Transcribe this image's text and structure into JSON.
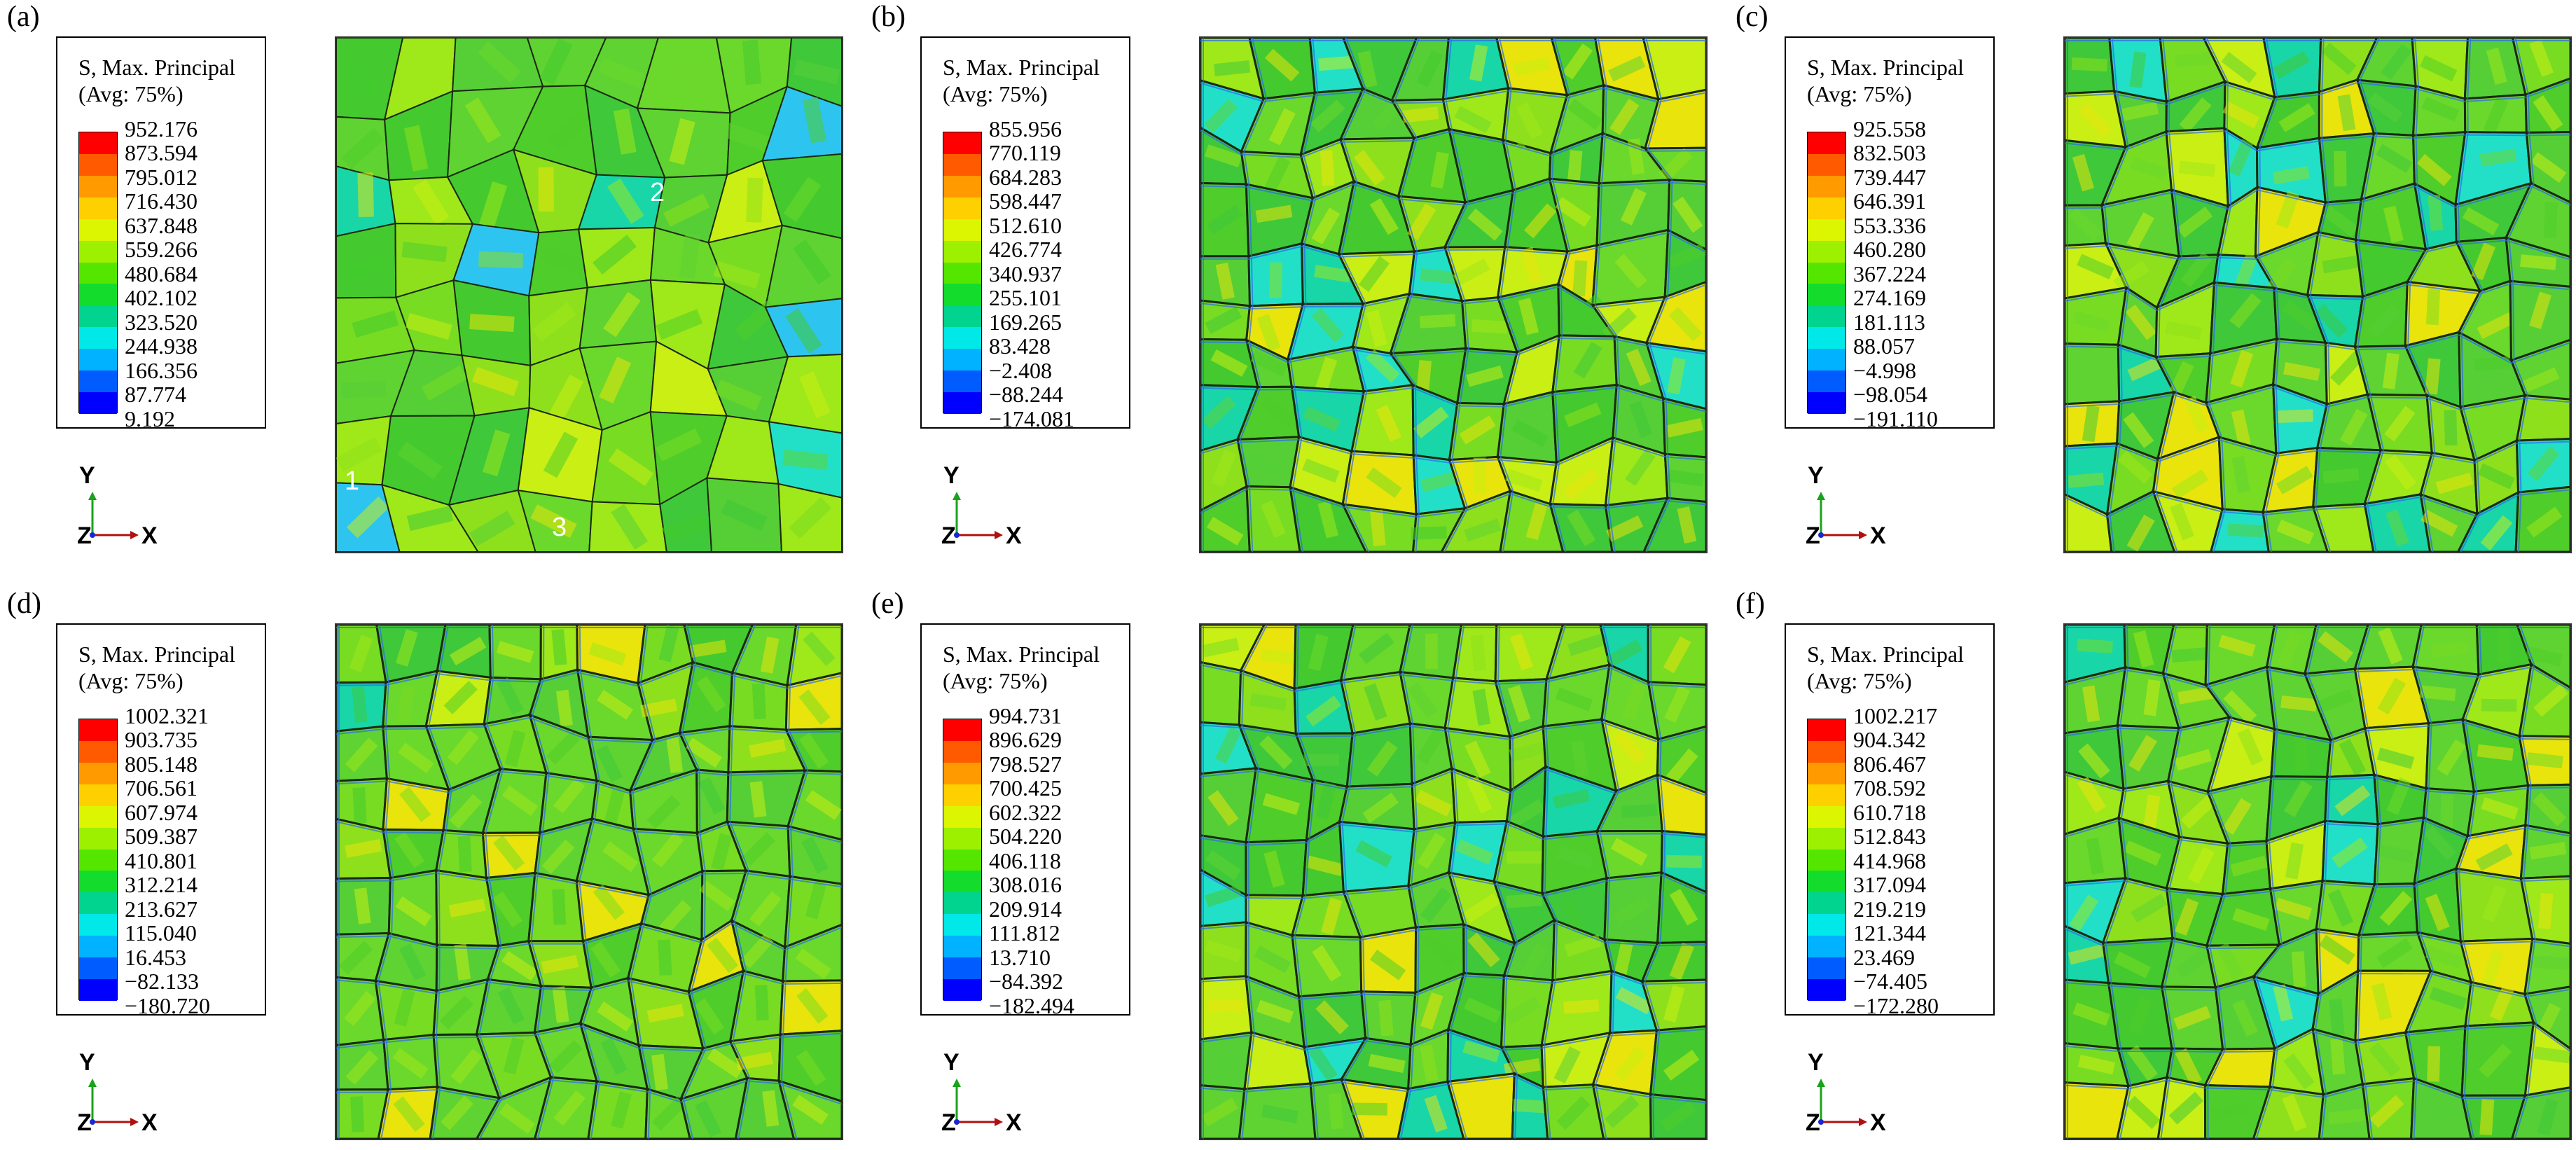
{
  "legend_title_1": "S, Max. Principal",
  "legend_title_2": "(Avg: 75%)",
  "axis": {
    "y": "Y",
    "z": "Z",
    "x": "X"
  },
  "colors": [
    "#ff0000",
    "#ff5a00",
    "#ff9a00",
    "#ffd000",
    "#dcf500",
    "#9cf000",
    "#55e600",
    "#14dc2c",
    "#00d48e",
    "#00e8e8",
    "#00b2ff",
    "#005cff",
    "#0000ff"
  ],
  "panels": [
    {
      "tag": "(a)",
      "values": [
        "952.176",
        "873.594",
        "795.012",
        "716.430",
        "637.848",
        "559.266",
        "480.684",
        "402.102",
        "323.520",
        "244.938",
        "166.356",
        "87.774",
        "9.192"
      ],
      "markers": [
        "1",
        "2",
        "3"
      ]
    },
    {
      "tag": "(b)",
      "values": [
        "855.956",
        "770.119",
        "684.283",
        "598.447",
        "512.610",
        "426.774",
        "340.937",
        "255.101",
        "169.265",
        "83.428",
        "−2.408",
        "−88.244",
        "−174.081"
      ]
    },
    {
      "tag": "(c)",
      "values": [
        "925.558",
        "832.503",
        "739.447",
        "646.391",
        "553.336",
        "460.280",
        "367.224",
        "274.169",
        "181.113",
        "88.057",
        "−4.998",
        "−98.054",
        "−191.110"
      ]
    },
    {
      "tag": "(d)",
      "values": [
        "1002.321",
        "903.735",
        "805.148",
        "706.561",
        "607.974",
        "509.387",
        "410.801",
        "312.214",
        "213.627",
        "115.040",
        "16.453",
        "−82.133",
        "−180.720"
      ]
    },
    {
      "tag": "(e)",
      "values": [
        "994.731",
        "896.629",
        "798.527",
        "700.425",
        "602.322",
        "504.220",
        "406.118",
        "308.016",
        "209.914",
        "111.812",
        "13.710",
        "−84.392",
        "−182.494"
      ]
    },
    {
      "tag": "(f)",
      "values": [
        "1002.217",
        "904.342",
        "806.467",
        "708.592",
        "610.718",
        "512.843",
        "414.968",
        "317.094",
        "219.219",
        "121.344",
        "23.469",
        "−74.405",
        "−172.280"
      ]
    }
  ]
}
